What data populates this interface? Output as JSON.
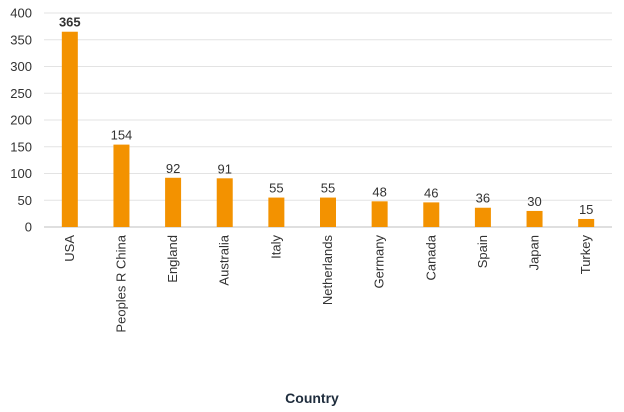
{
  "chart_data": {
    "type": "bar",
    "title": "",
    "xlabel": "Country",
    "ylabel": "",
    "categories": [
      "USA",
      "Peoples R China",
      "England",
      "Australia",
      "Italy",
      "Netherlands",
      "Germany",
      "Canada",
      "Spain",
      "Japan",
      "Turkey"
    ],
    "values": [
      365,
      154,
      92,
      91,
      55,
      55,
      48,
      46,
      36,
      30,
      15
    ],
    "ylim": [
      0,
      400
    ],
    "yticks": [
      0,
      50,
      100,
      150,
      200,
      250,
      300,
      350,
      400
    ],
    "grid": true,
    "legend": "none",
    "bar_color": "#f39200",
    "grid_color": "#e3e3e3",
    "axis_color": "#bfbfbf"
  }
}
